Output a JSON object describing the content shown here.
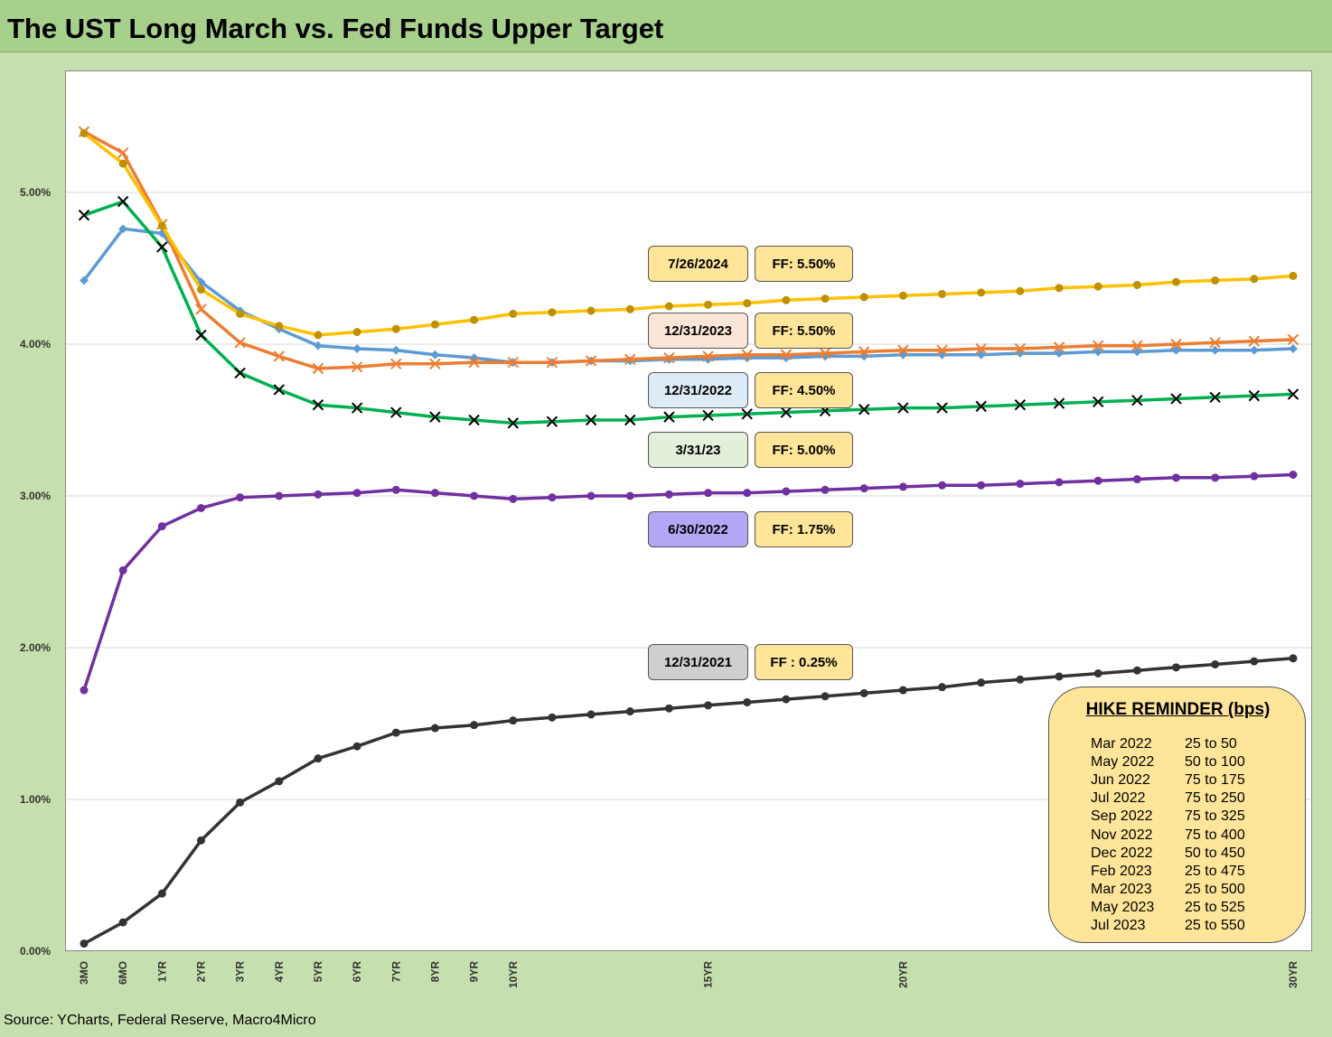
{
  "title": "The UST Long March vs. Fed Funds Upper Target",
  "source": "Source: YCharts, Federal Reserve, Macro4Micro",
  "chart_data": {
    "type": "line",
    "title": "The UST Long March vs. Fed Funds Upper Target",
    "xlabel": "",
    "ylabel": "",
    "ylim": [
      0,
      0.058
    ],
    "grid": true,
    "y_ticks": [
      "0.00%",
      "1.00%",
      "2.00%",
      "3.00%",
      "4.00%",
      "5.00%"
    ],
    "y_tick_values": [
      0,
      0.01,
      0.02,
      0.03,
      0.04,
      0.05
    ],
    "x_ticks": [
      "3MO",
      "6MO",
      "1YR",
      "2YR",
      "3YR",
      "4YR",
      "5YR",
      "6YR",
      "7YR",
      "8YR",
      "9YR",
      "10YR",
      "15YR",
      "20YR",
      "30YR"
    ],
    "x_tick_positions": [
      0,
      1,
      2,
      3,
      4,
      5,
      6,
      7,
      8,
      9,
      10,
      11,
      16,
      21,
      31
    ],
    "x": [
      0,
      1,
      2,
      3,
      4,
      5,
      6,
      7,
      8,
      9,
      10,
      11,
      12,
      13,
      14,
      15,
      16,
      17,
      18,
      19,
      20,
      21,
      22,
      23,
      24,
      25,
      26,
      27,
      28,
      29,
      30,
      31
    ],
    "series": [
      {
        "name": "12/31/2021",
        "color": "#333333",
        "marker": "dot",
        "values": [
          0.0005,
          0.0019,
          0.0038,
          0.0073,
          0.0098,
          0.0112,
          0.0127,
          0.0135,
          0.0144,
          0.0147,
          0.0149,
          0.0152,
          0.0154,
          0.0156,
          0.0158,
          0.016,
          0.0162,
          0.0164,
          0.0166,
          0.0168,
          0.017,
          0.0172,
          0.0174,
          0.0177,
          0.0179,
          0.0181,
          0.0183,
          0.0185,
          0.0187,
          0.0189,
          0.0191,
          0.0193
        ]
      },
      {
        "name": "6/30/2022",
        "color": "#7030a0",
        "marker": "dot",
        "values": [
          0.0172,
          0.0251,
          0.028,
          0.0292,
          0.0299,
          0.03,
          0.0301,
          0.0302,
          0.0304,
          0.0302,
          0.03,
          0.0298,
          0.0299,
          0.03,
          0.03,
          0.0301,
          0.0302,
          0.0302,
          0.0303,
          0.0304,
          0.0305,
          0.0306,
          0.0307,
          0.0307,
          0.0308,
          0.0309,
          0.031,
          0.0311,
          0.0312,
          0.0312,
          0.0313,
          0.0314
        ]
      },
      {
        "name": "12/31/2022",
        "color": "#5b9bd5",
        "marker": "diamond",
        "values": [
          0.0442,
          0.0476,
          0.0473,
          0.0441,
          0.0422,
          0.041,
          0.0399,
          0.0397,
          0.0396,
          0.0393,
          0.0391,
          0.0388,
          0.0388,
          0.0389,
          0.0389,
          0.039,
          0.039,
          0.0391,
          0.0391,
          0.0392,
          0.0392,
          0.0393,
          0.0393,
          0.0393,
          0.0394,
          0.0394,
          0.0395,
          0.0395,
          0.0396,
          0.0396,
          0.0396,
          0.0397
        ]
      },
      {
        "name": "3/31/23",
        "color": "#00b050",
        "marker": "x",
        "values": [
          0.0485,
          0.0494,
          0.0464,
          0.0406,
          0.0381,
          0.037,
          0.036,
          0.0358,
          0.0355,
          0.0352,
          0.035,
          0.0348,
          0.0349,
          0.035,
          0.035,
          0.0352,
          0.0353,
          0.0354,
          0.0355,
          0.0356,
          0.0357,
          0.0358,
          0.0358,
          0.0359,
          0.036,
          0.0361,
          0.0362,
          0.0363,
          0.0364,
          0.0365,
          0.0366,
          0.0367
        ]
      },
      {
        "name": "12/31/2023",
        "color": "#ed7d31",
        "marker": "x",
        "values": [
          0.054,
          0.0526,
          0.0479,
          0.0423,
          0.0401,
          0.0392,
          0.0384,
          0.0385,
          0.0387,
          0.0387,
          0.0388,
          0.0388,
          0.0388,
          0.0389,
          0.039,
          0.0391,
          0.0392,
          0.0393,
          0.0393,
          0.0394,
          0.0395,
          0.0396,
          0.0396,
          0.0397,
          0.0397,
          0.0398,
          0.0399,
          0.0399,
          0.04,
          0.0401,
          0.0402,
          0.0403
        ]
      },
      {
        "name": "7/26/2024",
        "color": "#ffc000",
        "markerColor": "#bf9000",
        "marker": "dot",
        "values": [
          0.0539,
          0.0519,
          0.0478,
          0.0436,
          0.042,
          0.0412,
          0.0406,
          0.0408,
          0.041,
          0.0413,
          0.0416,
          0.042,
          0.0421,
          0.0422,
          0.0423,
          0.0425,
          0.0426,
          0.0427,
          0.0429,
          0.043,
          0.0431,
          0.0432,
          0.0433,
          0.0434,
          0.0435,
          0.0437,
          0.0438,
          0.0439,
          0.0441,
          0.0442,
          0.0443,
          0.0445
        ]
      }
    ]
  },
  "labels": [
    {
      "date": "7/26/2024",
      "ff": "FF: 5.50%",
      "date_color": "#ffe599"
    },
    {
      "date": "12/31/2023",
      "ff": "FF: 5.50%",
      "date_color": "#fbe5d6"
    },
    {
      "date": "12/31/2022",
      "ff": "FF: 4.50%",
      "date_color": "#ddebf7"
    },
    {
      "date": "3/31/23",
      "ff": "FF: 5.00%",
      "date_color": "#e2efda"
    },
    {
      "date": "6/30/2022",
      "ff": "FF: 1.75%",
      "date_color": "#b4a7f5"
    },
    {
      "date": "12/31/2021",
      "ff": "FF : 0.25%",
      "date_color": "#d0cece"
    }
  ],
  "hike_reminder": {
    "title": "HIKE REMINDER (bps)",
    "rows": [
      {
        "month": "Mar 2022",
        "value": "25 to 50"
      },
      {
        "month": "May 2022",
        "value": "50 to 100"
      },
      {
        "month": "Jun 2022",
        "value": "75 to 175"
      },
      {
        "month": "Jul 2022",
        "value": "75 to 250"
      },
      {
        "month": "Sep 2022",
        "value": "75 to 325"
      },
      {
        "month": "Nov 2022",
        "value": "75 to 400"
      },
      {
        "month": "Dec 2022",
        "value": "50 to 450"
      },
      {
        "month": "Feb 2023",
        "value": "25 to 475"
      },
      {
        "month": "Mar 2023",
        "value": "25 to 500"
      },
      {
        "month": "May 2023",
        "value": "25 to 525"
      },
      {
        "month": "Jul 2023",
        "value": "25 to 550"
      }
    ]
  }
}
